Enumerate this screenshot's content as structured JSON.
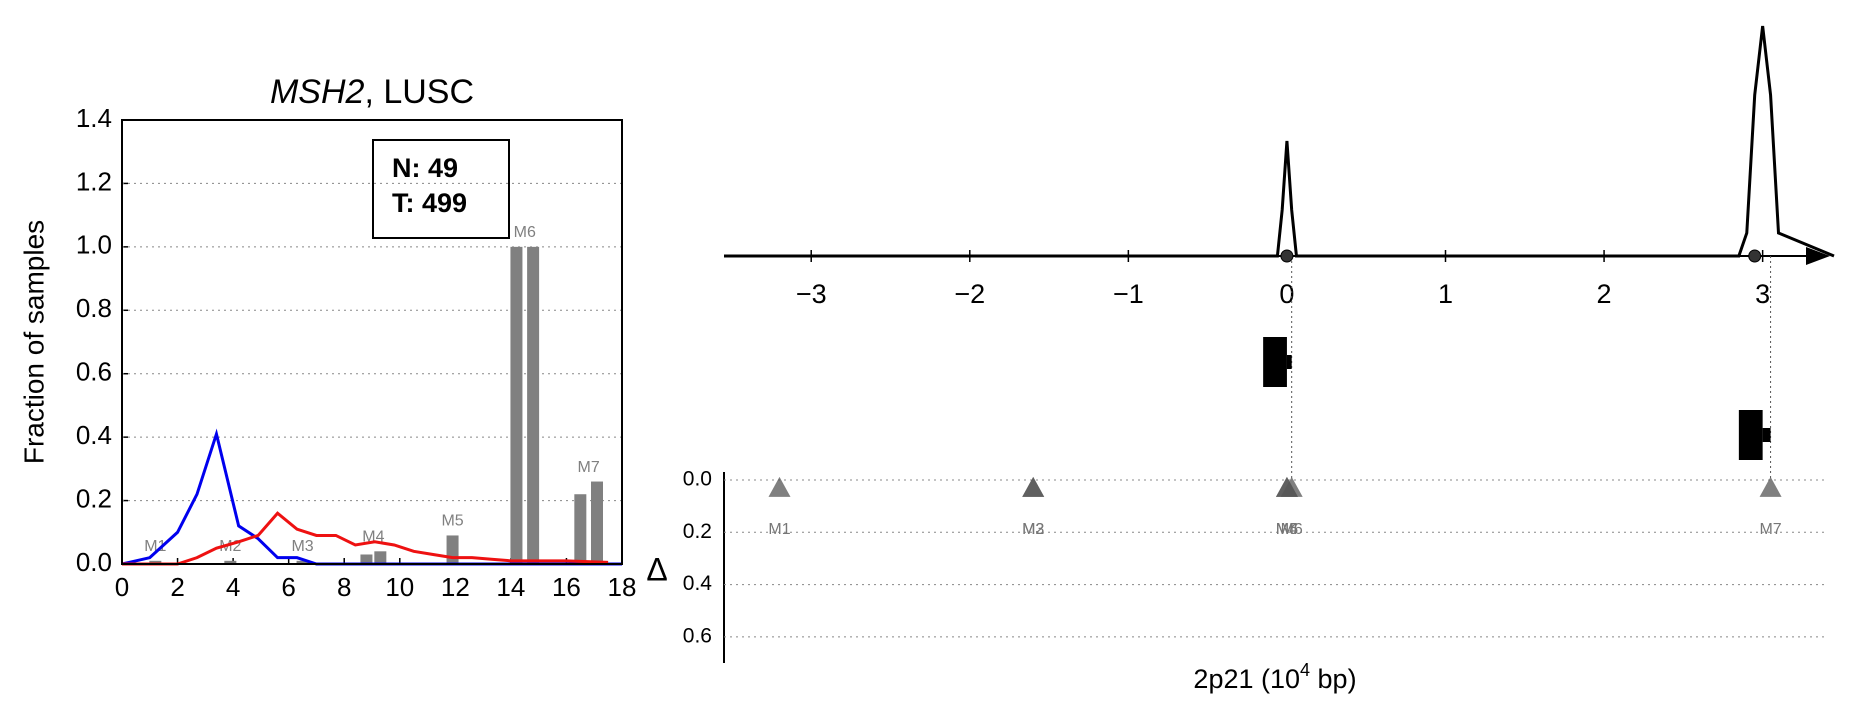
{
  "chart_data": [
    {
      "type": "line",
      "title": [
        "MSH2",
        ", LUSC"
      ],
      "ylabel": "Fraction of samples",
      "annotation": [
        "N: 49",
        "T: 499"
      ],
      "xlim": [
        0,
        18
      ],
      "xticks": [
        0,
        2,
        4,
        6,
        8,
        10,
        12,
        14,
        16,
        18
      ],
      "ylim": [
        0,
        1.4
      ],
      "yticks": [
        {
          "value": 0,
          "label": "0.0"
        },
        0.2,
        0.4,
        0.6,
        0.8,
        {
          "value": 1,
          "label": "1.0"
        },
        1.2,
        1.4
      ],
      "grid": true,
      "series": [
        {
          "color": "#0000ee",
          "x": [
            0,
            1,
            2,
            2.7,
            3.4,
            4.2,
            4.9,
            5.6,
            6.3,
            7,
            18
          ],
          "values": [
            0,
            0.02,
            0.1,
            0.22,
            0.41,
            0.12,
            0.08,
            0.02,
            0.02,
            0,
            0
          ]
        },
        {
          "color": "#ee1111",
          "x": [
            0,
            2,
            2.7,
            3.4,
            4.2,
            4.9,
            5.6,
            6.3,
            7,
            7.7,
            8.4,
            9.1,
            9.8,
            10.5,
            11.2,
            11.9,
            12.6,
            13.3,
            14,
            16,
            17.5
          ],
          "values": [
            0,
            0,
            0.02,
            0.05,
            0.07,
            0.09,
            0.16,
            0.11,
            0.09,
            0.09,
            0.06,
            0.07,
            0.06,
            0.04,
            0.03,
            0.02,
            0.02,
            0.015,
            0.01,
            0.01,
            0.005
          ]
        }
      ],
      "bar_color": "#808080",
      "bar_groups": [
        {
          "name": "M1",
          "x": [
            1.2
          ],
          "values": [
            0.01
          ]
        },
        {
          "name": "M2",
          "x": [
            3.9
          ],
          "values": [
            0.01
          ]
        },
        {
          "name": "M3",
          "x": [
            6.5
          ],
          "values": [
            0.01
          ]
        },
        {
          "name": "M4",
          "x": [
            8.8,
            9.3
          ],
          "values": [
            0.03,
            0.04
          ]
        },
        {
          "name": "M5",
          "x": [
            11.9
          ],
          "values": [
            0.09
          ]
        },
        {
          "name": "M6",
          "x": [
            14.2,
            14.8
          ],
          "values": [
            1.0,
            1.0
          ]
        },
        {
          "name": "M7",
          "x": [
            16.5,
            17.1
          ],
          "values": [
            0.22,
            0.26
          ]
        }
      ]
    },
    {
      "type": "line",
      "xlim": [
        -3.55,
        3.45
      ],
      "xticks": [
        {
          "value": -3,
          "label": "−3"
        },
        {
          "value": -2,
          "label": "−2"
        },
        {
          "value": -1,
          "label": "−1"
        },
        0,
        1,
        2,
        3
      ],
      "ylim": [
        0,
        1
      ],
      "series": [
        {
          "color": "#000000",
          "x": [
            -3.55,
            -0.06,
            -0.03,
            0,
            0.03,
            0.06,
            2.85,
            2.9,
            2.95,
            3.0,
            3.05,
            3.1,
            3.45
          ],
          "values": [
            0,
            0,
            0.2,
            0.5,
            0.2,
            0,
            0,
            0.1,
            0.7,
            1.0,
            0.7,
            0.1,
            0
          ]
        }
      ],
      "points": [
        0,
        2.95
      ],
      "boxes": [
        {
          "low": -0.15,
          "high": 0.0,
          "whisker": 0.03
        },
        {
          "low": 2.85,
          "high": 3.0,
          "whisker": 3.05
        }
      ]
    },
    {
      "type": "scatter",
      "ylabel": "Δ",
      "xlabel": [
        "2p21 (10",
        "4",
        " bp)"
      ],
      "xlim": [
        -3.55,
        3.45
      ],
      "ylim": [
        0,
        0.7
      ],
      "yticks": [
        {
          "value": 0,
          "label": "0.0"
        },
        0.2,
        0.4,
        0.6
      ],
      "grid": true,
      "color": "#555555",
      "names": [
        "M1",
        "M2",
        "M3",
        "M4",
        "M5",
        "M6",
        "M7"
      ],
      "x": [
        -3.2,
        -1.6,
        -1.6,
        0,
        0,
        0.03,
        3.05
      ],
      "values": [
        0.03,
        0.03,
        0.03,
        0.03,
        0.03,
        0.03,
        0.03
      ]
    }
  ]
}
